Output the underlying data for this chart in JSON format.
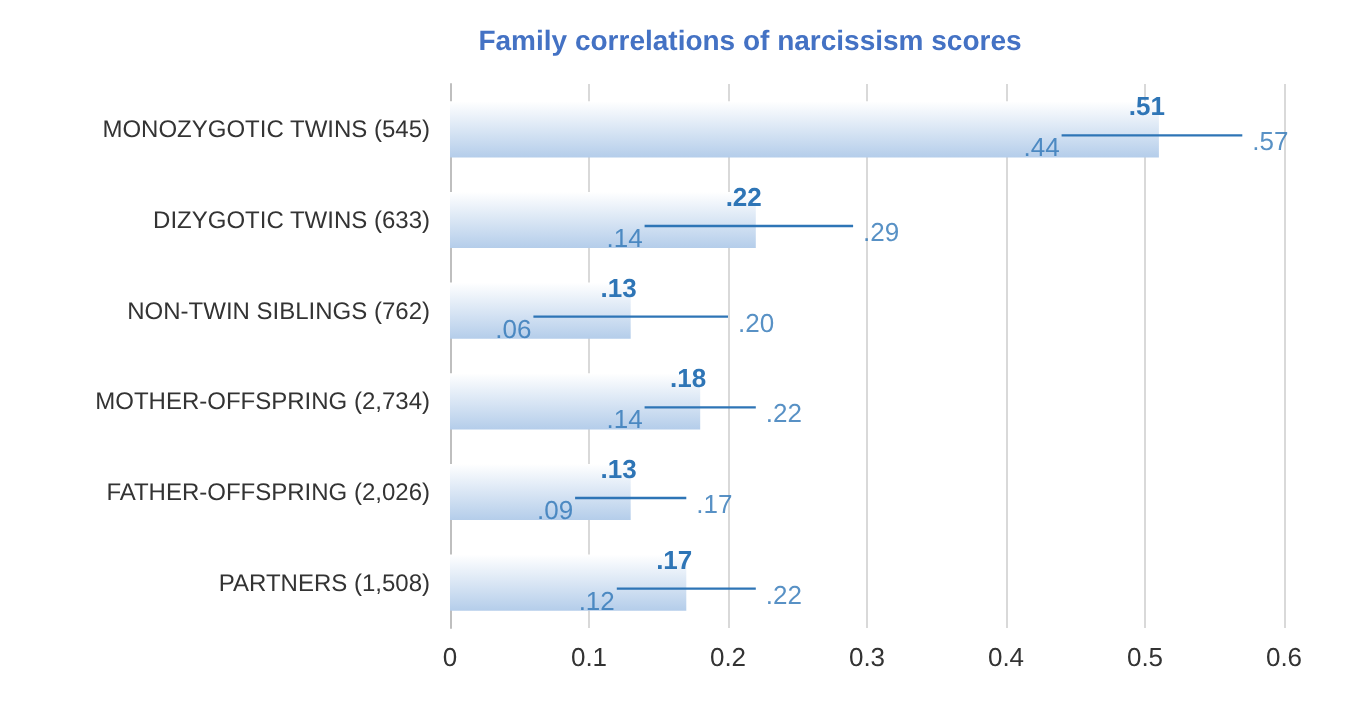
{
  "chart_data": {
    "type": "bar",
    "orientation": "horizontal",
    "title": "Family correlations of narcissism scores",
    "categories": [
      "MONOZYGOTIC TWINS (545)",
      "DIZYGOTIC TWINS (633)",
      "NON-TWIN SIBLINGS (762)",
      "MOTHER-OFFSPRING (2,734)",
      "FATHER-OFFSPRING (2,026)",
      "PARTNERS (1,508)"
    ],
    "values": [
      0.51,
      0.22,
      0.13,
      0.18,
      0.13,
      0.17
    ],
    "value_labels": [
      ".51",
      ".22",
      ".13",
      ".18",
      ".13",
      ".17"
    ],
    "errors": [
      [
        0.44,
        0.57
      ],
      [
        0.14,
        0.29
      ],
      [
        0.06,
        0.2
      ],
      [
        0.14,
        0.22
      ],
      [
        0.09,
        0.17
      ],
      [
        0.12,
        0.22
      ]
    ],
    "color": "#b4cdea",
    "xlim": [
      0,
      0.6
    ],
    "xticks": [
      0,
      0.1,
      0.2,
      0.3,
      0.4,
      0.5,
      0.6
    ],
    "grid": "x",
    "annotations": [
      {
        "text": ".44",
        "x": 0.44,
        "y": "MONOZYGOTIC TWINS (545)"
      },
      {
        "text": ".57",
        "x": 0.57,
        "y": "MONOZYGOTIC TWINS (545)"
      },
      {
        "text": ".14",
        "x": 0.14,
        "y": "DIZYGOTIC TWINS (633)"
      },
      {
        "text": ".29",
        "x": 0.29,
        "y": "DIZYGOTIC TWINS (633)"
      },
      {
        "text": ".06",
        "x": 0.06,
        "y": "NON-TWIN SIBLINGS (762)"
      },
      {
        "text": ".20",
        "x": 0.2,
        "y": "NON-TWIN SIBLINGS (762)"
      },
      {
        "text": ".14",
        "x": 0.14,
        "y": "MOTHER-OFFSPRING (2,734)"
      },
      {
        "text": ".22",
        "x": 0.22,
        "y": "MOTHER-OFFSPRING (2,734)"
      },
      {
        "text": ".09",
        "x": 0.09,
        "y": "FATHER-OFFSPRING (2,026)"
      },
      {
        "text": ".17",
        "x": 0.17,
        "y": "FATHER-OFFSPRING (2,026)"
      },
      {
        "text": ".12",
        "x": 0.12,
        "y": "PARTNERS (1,508)"
      },
      {
        "text": ".22",
        "x": 0.22,
        "y": "PARTNERS (1,508)"
      }
    ]
  }
}
